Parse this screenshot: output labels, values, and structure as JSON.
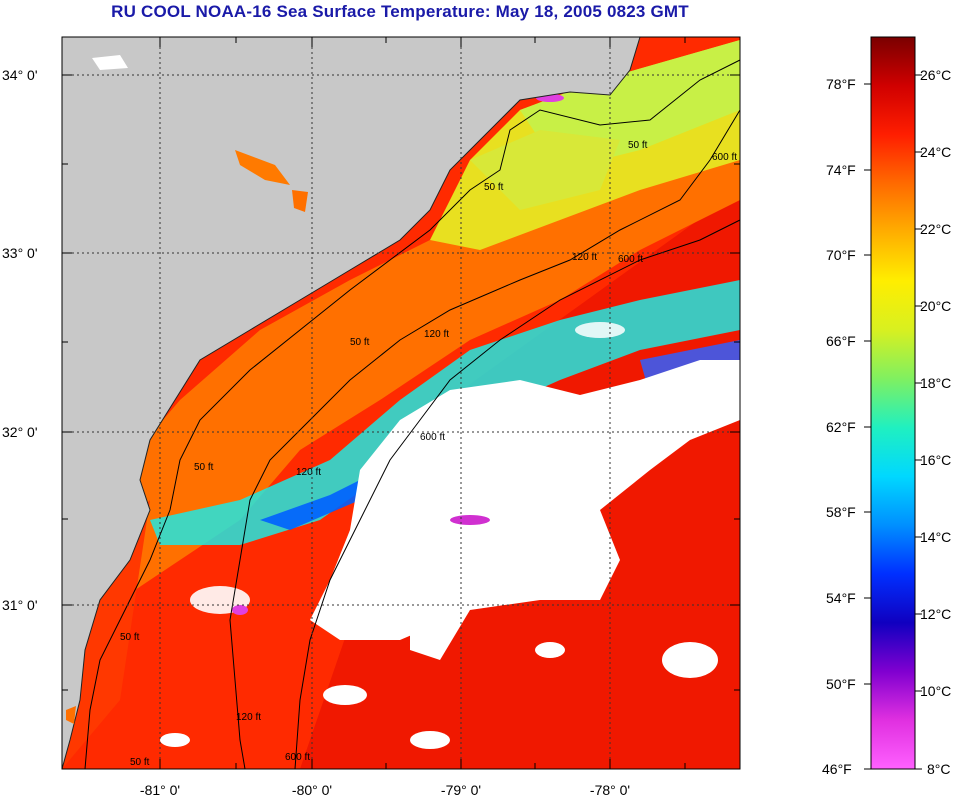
{
  "title": "RU COOL  NOAA-16  Sea Surface Temperature:  May 18, 2005 0823 GMT",
  "map": {
    "lat_labels": [
      "34° 0'",
      "33° 0'",
      "32° 0'",
      "31° 0'"
    ],
    "lon_labels": [
      "-81° 0'",
      "-80° 0'",
      "-79° 0'",
      "-78° 0'"
    ],
    "contour_labels": [
      "50 ft",
      "120 ft",
      "600 ft",
      "50 ft",
      "120 ft",
      "600 ft",
      "50 ft",
      "120 ft",
      "600 ft",
      "50 ft",
      "50 ft",
      "120 ft",
      "50 ft",
      "600 ft"
    ],
    "colors": {
      "land": "#c8c8c8",
      "cloud": "#ffffff",
      "warm_water": "#ff2800",
      "mid_water": "#ff7a00",
      "cool_water": "#c8f046"
    }
  },
  "colorbar": {
    "fahrenheit_labels": [
      "78°F",
      "74°F",
      "70°F",
      "66°F",
      "62°F",
      "58°F",
      "54°F",
      "50°F",
      "46°F"
    ],
    "celsius_labels": [
      "26°C",
      "24°C",
      "22°C",
      "20°C",
      "18°C",
      "16°C",
      "14°C",
      "12°C",
      "10°C",
      "8°C"
    ],
    "gradient_colors": [
      "#7a0000",
      "#d00000",
      "#ff1e00",
      "#ff6a00",
      "#ffae00",
      "#ffee00",
      "#d8f020",
      "#80f060",
      "#20f0c0",
      "#00d8ff",
      "#0090ff",
      "#0030ff",
      "#1000c0",
      "#8000d0",
      "#e030e0",
      "#ff60ff"
    ]
  }
}
